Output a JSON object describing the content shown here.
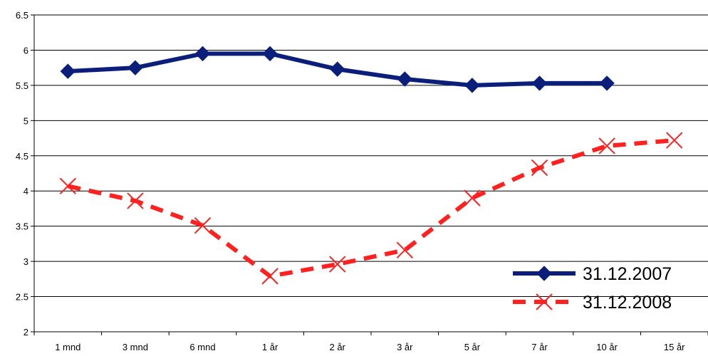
{
  "chart_data": {
    "type": "line",
    "categories": [
      "1 mnd",
      "3 mnd",
      "6 mnd",
      "1 år",
      "2 år",
      "3 år",
      "5 år",
      "7 år",
      "10 år",
      "15 år"
    ],
    "ylim": [
      2,
      6.5
    ],
    "yticks": [
      "2",
      "2.5",
      "3",
      "3.5",
      "4",
      "4.5",
      "5",
      "5.5",
      "6",
      "6.5"
    ],
    "grid": true,
    "legend_position": "bottom-right",
    "series": [
      {
        "name": "31.12.2007",
        "values": [
          5.7,
          5.75,
          5.95,
          5.95,
          5.73,
          5.59,
          5.5,
          5.53,
          5.53,
          null
        ],
        "color": "#0b1f7a",
        "marker": "diamond",
        "style": "solid"
      },
      {
        "name": "31.12.2008",
        "values": [
          4.07,
          3.86,
          3.51,
          2.79,
          2.96,
          3.16,
          3.9,
          4.33,
          4.64,
          4.72
        ],
        "color": "#ff2020",
        "marker": "x",
        "style": "dashed"
      }
    ]
  }
}
